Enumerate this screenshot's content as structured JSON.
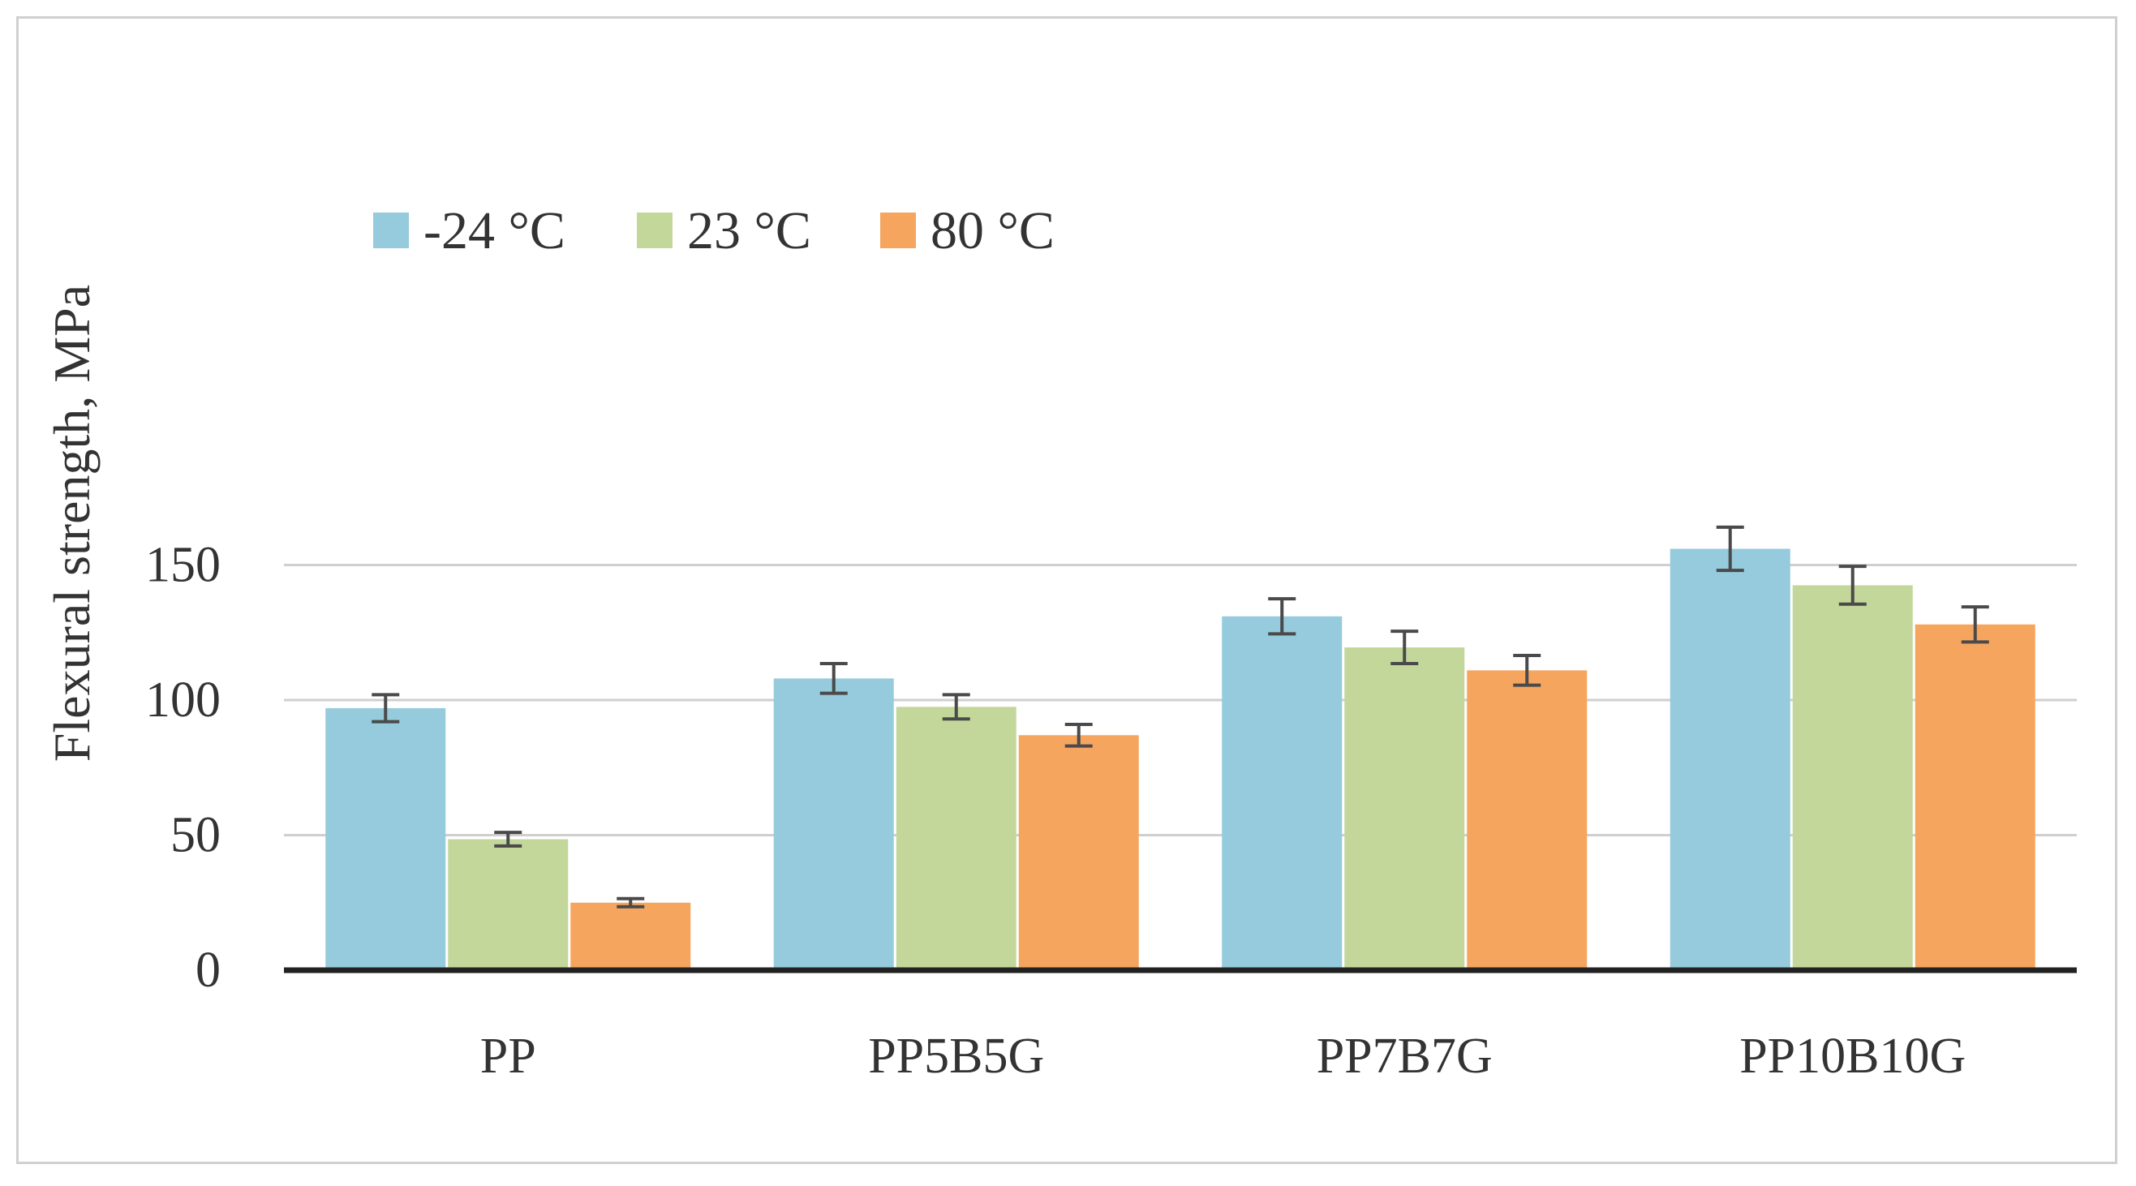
{
  "chart_data": {
    "type": "bar",
    "title": "",
    "xlabel": "",
    "ylabel": "Flexural strength, MPa",
    "ylim": [
      0,
      160
    ],
    "yticks": [
      "0",
      "50",
      "100",
      "150"
    ],
    "grid": true,
    "legend_position": "top-left",
    "categories": [
      "PP",
      "PP5B5G",
      "PP7B7G",
      "PP10B10G"
    ],
    "series": [
      {
        "name": "-24 °C",
        "color": "#95CBDC",
        "values": [
          97,
          108,
          131,
          156
        ],
        "errors": [
          5,
          5.5,
          6.5,
          8
        ]
      },
      {
        "name": "23 °C",
        "color": "#C4D79B",
        "values": [
          48.5,
          97.5,
          119.5,
          142.5
        ],
        "errors": [
          2.5,
          4.5,
          6,
          7
        ]
      },
      {
        "name": "80 °C",
        "color": "#F6A55F",
        "values": [
          25,
          87,
          111,
          128
        ],
        "errors": [
          1.5,
          4,
          5.5,
          6.5
        ]
      }
    ]
  }
}
